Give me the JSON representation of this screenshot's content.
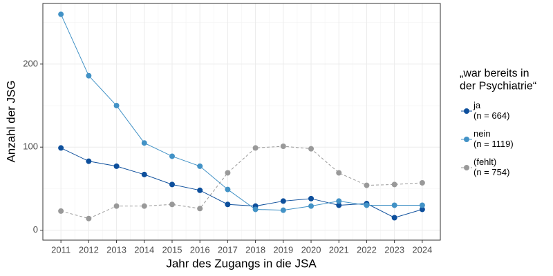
{
  "chart_data": {
    "type": "line",
    "x_label": "Jahr des Zugangs in die JSA",
    "y_label": "Anzahl der JSG",
    "legend_title": "„war bereits in\nder Psychiatrie“",
    "legend_position": "right",
    "grid": true,
    "x": [
      2011,
      2012,
      2013,
      2014,
      2015,
      2016,
      2017,
      2018,
      2019,
      2020,
      2021,
      2022,
      2023,
      2024
    ],
    "xlim": [
      2010.35,
      2024.65
    ],
    "xticks": [
      2011,
      2012,
      2013,
      2014,
      2015,
      2016,
      2017,
      2018,
      2019,
      2020,
      2021,
      2022,
      2023,
      2024
    ],
    "ylim": [
      -12,
      273
    ],
    "yticks": [
      0,
      100,
      200
    ],
    "series": [
      {
        "name": "ja\n(n = 664)",
        "color": "#0d4f9c",
        "linestyle": "solid",
        "values": [
          99,
          83,
          77,
          67,
          55,
          48,
          31,
          29,
          35,
          38,
          30,
          32,
          15,
          25
        ]
      },
      {
        "name": "nein\n(n = 1119)",
        "color": "#4292c6",
        "linestyle": "solid",
        "values": [
          260,
          186,
          150,
          105,
          89,
          77,
          49,
          25,
          24,
          29,
          35,
          30,
          30,
          30
        ]
      },
      {
        "name": "(fehlt)\n(n = 754)",
        "color": "#999999",
        "linestyle": "dashed",
        "values": [
          23,
          14,
          29,
          29,
          31,
          26,
          69,
          99,
          101,
          98,
          69,
          54,
          55,
          57
        ]
      }
    ]
  }
}
